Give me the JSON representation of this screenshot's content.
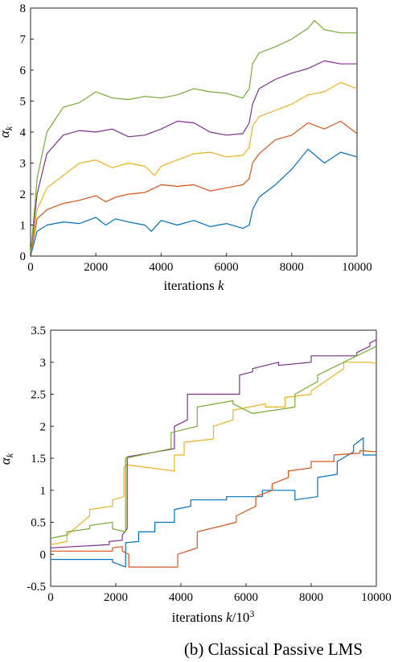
{
  "chart_data": [
    {
      "type": "line",
      "title": "",
      "xlabel": "iterations k",
      "ylabel": "α_k",
      "xlim": [
        0,
        10000
      ],
      "ylim": [
        0,
        8
      ],
      "xticks": [
        "0",
        "2000",
        "4000",
        "6000",
        "8000",
        "10000"
      ],
      "yticks": [
        "0",
        "1",
        "2",
        "3",
        "4",
        "5",
        "6",
        "7",
        "8"
      ],
      "grid": false,
      "series": [
        {
          "color": "#0072BD",
          "x": [
            0,
            200,
            500,
            1000,
            1500,
            2000,
            2300,
            2600,
            3000,
            3500,
            3700,
            4000,
            4500,
            5000,
            5500,
            6000,
            6500,
            6700,
            6800,
            7000,
            7500,
            8000,
            8500,
            9000,
            9500,
            10000
          ],
          "y": [
            0,
            0.8,
            1.0,
            1.1,
            1.05,
            1.25,
            1.0,
            1.2,
            1.1,
            1.0,
            0.8,
            1.15,
            1.0,
            1.15,
            0.95,
            1.05,
            0.9,
            1.0,
            1.5,
            1.9,
            2.3,
            2.8,
            3.45,
            3.0,
            3.35,
            3.2
          ]
        },
        {
          "color": "#D95319",
          "x": [
            0,
            200,
            500,
            1000,
            1500,
            2000,
            2300,
            2600,
            3000,
            3500,
            4000,
            4500,
            5000,
            5500,
            6000,
            6500,
            6700,
            6800,
            7000,
            7500,
            8000,
            8500,
            9000,
            9500,
            10000
          ],
          "y": [
            0,
            1.2,
            1.5,
            1.7,
            1.8,
            1.95,
            1.75,
            1.9,
            2.0,
            2.05,
            2.3,
            2.25,
            2.3,
            2.1,
            2.2,
            2.3,
            2.5,
            3.0,
            3.3,
            3.75,
            3.9,
            4.3,
            4.1,
            4.35,
            3.95
          ]
        },
        {
          "color": "#EDB120",
          "x": [
            0,
            200,
            500,
            1000,
            1500,
            2000,
            2500,
            3000,
            3500,
            3800,
            4000,
            4500,
            5000,
            5500,
            6000,
            6500,
            6700,
            6800,
            7000,
            7500,
            8000,
            8500,
            9000,
            9500,
            10000
          ],
          "y": [
            0,
            1.5,
            2.2,
            2.6,
            3.0,
            3.1,
            2.85,
            3.0,
            2.9,
            2.6,
            2.9,
            3.1,
            3.3,
            3.35,
            3.2,
            3.25,
            3.5,
            4.2,
            4.5,
            4.7,
            4.9,
            5.2,
            5.3,
            5.6,
            5.4
          ]
        },
        {
          "color": "#7E2F8E",
          "x": [
            0,
            200,
            500,
            1000,
            1500,
            2000,
            2500,
            3000,
            3500,
            4000,
            4500,
            5000,
            5500,
            6000,
            6500,
            6700,
            6800,
            7000,
            7500,
            8000,
            8500,
            9000,
            9500,
            10000
          ],
          "y": [
            0,
            2.0,
            3.3,
            3.9,
            4.05,
            4.0,
            4.1,
            3.85,
            3.9,
            4.1,
            4.35,
            4.3,
            4.0,
            3.9,
            3.95,
            4.3,
            4.9,
            5.4,
            5.7,
            5.9,
            6.05,
            6.3,
            6.2,
            6.2
          ]
        },
        {
          "color": "#77AC30",
          "x": [
            0,
            200,
            500,
            1000,
            1500,
            2000,
            2500,
            3000,
            3500,
            4000,
            4500,
            5000,
            5500,
            6000,
            6500,
            6700,
            6800,
            7000,
            7500,
            8000,
            8500,
            8700,
            9000,
            9500,
            10000
          ],
          "y": [
            0,
            2.5,
            4.0,
            4.8,
            4.95,
            5.3,
            5.1,
            5.05,
            5.15,
            5.1,
            5.2,
            5.4,
            5.3,
            5.25,
            5.1,
            5.4,
            6.2,
            6.55,
            6.75,
            7.0,
            7.35,
            7.6,
            7.3,
            7.2,
            7.2
          ]
        }
      ]
    },
    {
      "type": "line",
      "title": "",
      "xlabel": "iterations k/10³",
      "ylabel": "α_k",
      "xlim": [
        0,
        10000
      ],
      "ylim": [
        -0.5,
        3.5
      ],
      "xticks": [
        "0",
        "2000",
        "4000",
        "6000",
        "8000",
        "10000"
      ],
      "yticks": [
        "-0.5",
        "0",
        "0.5",
        "1",
        "1.5",
        "2",
        "2.5",
        "3",
        "3.5"
      ],
      "grid": false,
      "caption": "(b) Classical Passive LMS",
      "series": [
        {
          "color": "#0072BD",
          "x": [
            0,
            1900,
            1900,
            2300,
            2300,
            2700,
            2700,
            3200,
            3200,
            3800,
            3800,
            4300,
            4300,
            5400,
            5400,
            6500,
            6500,
            7500,
            7500,
            8200,
            8200,
            8800,
            8800,
            9300,
            9300,
            9600,
            9600,
            10000
          ],
          "y": [
            -0.08,
            -0.08,
            -0.12,
            -0.2,
            0.18,
            0.2,
            0.35,
            0.35,
            0.5,
            0.5,
            0.7,
            0.75,
            0.85,
            0.85,
            0.9,
            0.9,
            1.0,
            1.0,
            0.85,
            0.9,
            1.2,
            1.25,
            1.45,
            1.6,
            1.7,
            1.82,
            1.55,
            1.55
          ]
        },
        {
          "color": "#D95319",
          "x": [
            0,
            1900,
            1900,
            2200,
            2200,
            2400,
            2400,
            3900,
            3900,
            4500,
            4500,
            5700,
            5700,
            6300,
            6300,
            6800,
            6800,
            7300,
            7300,
            8000,
            8000,
            8700,
            8700,
            9500,
            9500,
            10000
          ],
          "y": [
            0.05,
            0.05,
            0.1,
            0.12,
            0.05,
            0.0,
            -0.2,
            -0.2,
            0.0,
            0.1,
            0.35,
            0.5,
            0.6,
            0.75,
            0.9,
            1.0,
            1.1,
            1.2,
            1.3,
            1.35,
            1.45,
            1.45,
            1.55,
            1.58,
            1.62,
            1.6
          ]
        },
        {
          "color": "#EDB120",
          "x": [
            0,
            500,
            500,
            1200,
            1200,
            1900,
            1900,
            2250,
            2250,
            2300,
            2300,
            3800,
            3800,
            4100,
            4100,
            5000,
            5000,
            5600,
            5600,
            6600,
            6600,
            7200,
            7200,
            8000,
            8000,
            9000,
            9000,
            9800,
            9800,
            10000
          ],
          "y": [
            0.15,
            0.2,
            0.3,
            0.6,
            0.7,
            0.75,
            0.85,
            0.9,
            1.35,
            1.4,
            1.4,
            1.3,
            1.55,
            1.55,
            1.75,
            1.8,
            2.0,
            2.1,
            2.25,
            2.35,
            2.3,
            2.3,
            2.45,
            2.5,
            2.55,
            2.9,
            3.0,
            3.0,
            3.0,
            2.98
          ]
        },
        {
          "color": "#7E2F8E",
          "x": [
            0,
            1800,
            1800,
            2200,
            2200,
            2350,
            2350,
            3800,
            3800,
            4200,
            4200,
            5800,
            5800,
            6200,
            6200,
            7000,
            7000,
            8000,
            8000,
            9400,
            9400,
            9800,
            9800,
            10000
          ],
          "y": [
            0.1,
            0.15,
            0.2,
            0.22,
            0.3,
            0.4,
            1.52,
            1.65,
            2.0,
            2.1,
            2.5,
            2.5,
            2.8,
            2.85,
            2.9,
            3.0,
            2.95,
            3.0,
            3.1,
            3.1,
            3.15,
            3.25,
            3.3,
            3.35
          ]
        },
        {
          "color": "#77AC30",
          "x": [
            0,
            500,
            500,
            1200,
            1200,
            1900,
            1900,
            2300,
            2300,
            3700,
            3700,
            4500,
            4500,
            5600,
            5600,
            6200,
            6200,
            7500,
            7500,
            8200,
            8200,
            9000,
            9000,
            10000
          ],
          "y": [
            0.25,
            0.3,
            0.35,
            0.4,
            0.45,
            0.5,
            0.4,
            0.35,
            1.5,
            1.65,
            1.9,
            2.0,
            2.3,
            2.4,
            2.35,
            2.2,
            2.2,
            2.3,
            2.5,
            2.7,
            2.8,
            3.0,
            3.0,
            3.25
          ]
        }
      ]
    }
  ]
}
